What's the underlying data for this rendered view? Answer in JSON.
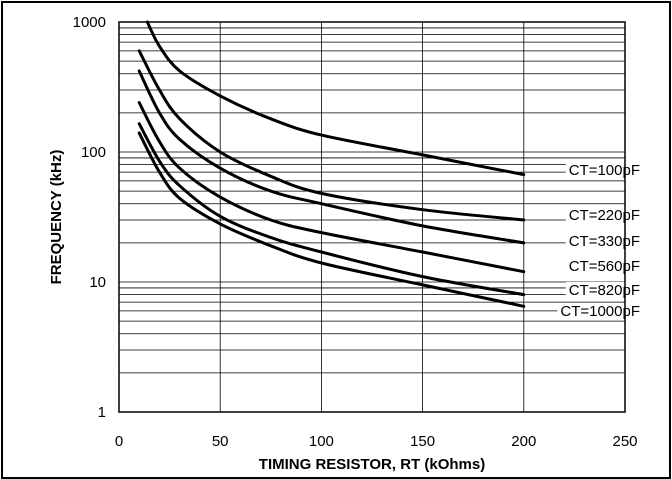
{
  "chart_data": {
    "type": "line",
    "title": "",
    "xlabel": "TIMING RESISTOR, RT (kOhms)",
    "ylabel": "FREQUENCY (kHz)",
    "xlim": [
      0,
      250
    ],
    "ylim": [
      1,
      1000
    ],
    "yscale": "log",
    "x_ticks": [
      "0",
      "50",
      "100",
      "150",
      "200",
      "250"
    ],
    "y_ticks": [
      "1",
      "10",
      "100",
      "1000"
    ],
    "grid": true,
    "series": [
      {
        "name": "CT=100pF",
        "x": [
          14,
          20,
          30,
          50,
          75,
          100,
          150,
          200
        ],
        "values": [
          1000,
          650,
          420,
          270,
          180,
          135,
          95,
          67
        ]
      },
      {
        "name": "CT=220pF",
        "x": [
          10,
          20,
          30,
          50,
          75,
          100,
          150,
          200
        ],
        "values": [
          600,
          300,
          180,
          100,
          65,
          48,
          36,
          30
        ]
      },
      {
        "name": "CT=330pF",
        "x": [
          10,
          20,
          30,
          50,
          75,
          100,
          150,
          200
        ],
        "values": [
          420,
          200,
          125,
          75,
          50,
          40,
          27,
          20
        ]
      },
      {
        "name": "CT=560pF",
        "x": [
          10,
          20,
          30,
          50,
          75,
          100,
          150,
          200
        ],
        "values": [
          240,
          120,
          75,
          45,
          30,
          24,
          17,
          12
        ]
      },
      {
        "name": "CT=820pF",
        "x": [
          10,
          20,
          30,
          50,
          75,
          100,
          150,
          200
        ],
        "values": [
          165,
          85,
          55,
          32,
          22,
          17,
          11,
          8
        ]
      },
      {
        "name": "CT=1000pF",
        "x": [
          10,
          20,
          30,
          50,
          75,
          100,
          150,
          200
        ],
        "values": [
          140,
          70,
          44,
          28,
          19,
          14,
          9.5,
          6.5
        ]
      }
    ]
  }
}
